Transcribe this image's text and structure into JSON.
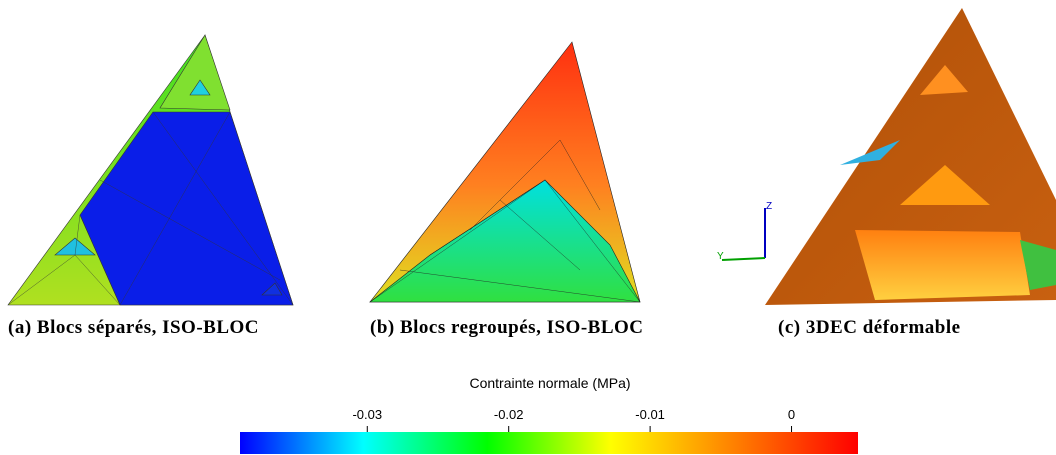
{
  "panels": [
    {
      "caption": "(a) Blocs séparés, ISO-BLOC"
    },
    {
      "caption": "(b) Blocs regroupés, ISO-BLOC"
    },
    {
      "caption": "(c) 3DEC déformable",
      "axis_labels": [
        "Z",
        "Y"
      ]
    }
  ],
  "colorbar": {
    "title": "Contrainte normale (MPa)",
    "lim": [
      -0.039,
      0.0047
    ],
    "ticks": [
      -0.03,
      -0.02,
      -0.01,
      0
    ],
    "colors": [
      "#0000ff",
      "#00ffff",
      "#00ff00",
      "#ffff00",
      "#ff8000",
      "#ff0000"
    ]
  }
}
